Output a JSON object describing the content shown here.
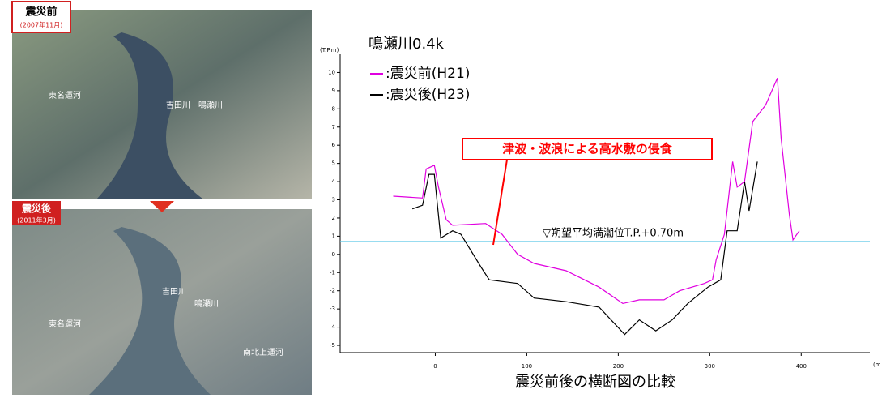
{
  "photos": [
    {
      "label": "震災前",
      "date": "(2007年11月)",
      "places": [
        "吉田川",
        "鳴瀬川",
        "東名運河"
      ]
    },
    {
      "label": "震災後",
      "date": "(2011年3月)",
      "places": [
        "鳴瀬川",
        "吉田川",
        "東名運河",
        "南北上運河"
      ]
    }
  ],
  "chart_data": {
    "type": "line",
    "title": "鳴瀬川0.4k",
    "caption": "震災前後の横断図の比較",
    "ylabel": "(T.P.m)",
    "xlabel": "(m",
    "annotation": "津波・波浪による高水敷の侵食",
    "hline": {
      "value": 0.7,
      "label": "▽朔望平均満潮位T.P.+0.70m",
      "color": "#5bc8e6"
    },
    "xlim": [
      -104,
      475
    ],
    "ylim": [
      -5.4,
      11
    ],
    "xticks": [
      0,
      100,
      200,
      300,
      400
    ],
    "yticks": [
      -5,
      -4,
      -3,
      -2,
      -1,
      0,
      1,
      2,
      3,
      4,
      5,
      6,
      7,
      8,
      9,
      10
    ],
    "series": [
      {
        "name": ":震災前(H21)",
        "color": "#e000e0",
        "x": [
          -46,
          -14,
          -10,
          -1,
          3.5,
          12,
          19,
          55,
          73,
          90,
          108,
          143,
          179,
          205,
          223,
          232,
          250,
          267,
          294,
          303,
          307,
          316,
          325,
          330,
          338,
          347,
          361,
          374,
          378,
          387,
          391,
          398
        ],
        "y": [
          3.2,
          3.1,
          4.7,
          4.9,
          3.7,
          1.9,
          1.6,
          1.7,
          1.1,
          0,
          -0.5,
          -0.9,
          -1.8,
          -2.7,
          -2.5,
          -2.5,
          -2.5,
          -2,
          -1.6,
          -1.4,
          -0.3,
          1.1,
          5.1,
          3.7,
          4,
          7.3,
          8.2,
          9.7,
          6.4,
          2.2,
          0.8,
          1.3
        ]
      },
      {
        "name": ":震災後(H23)",
        "color": "#000000",
        "x": [
          -25,
          -14,
          -7,
          -1,
          6,
          19,
          28,
          50,
          59,
          90,
          108,
          143,
          179,
          207,
          223,
          241,
          259,
          276,
          298,
          312,
          319,
          330,
          338,
          343,
          352
        ],
        "y": [
          2.5,
          2.7,
          4.4,
          4.4,
          0.9,
          1.3,
          1.1,
          -0.7,
          -1.4,
          -1.6,
          -2.4,
          -2.6,
          -2.9,
          -4.4,
          -3.6,
          -4.2,
          -3.6,
          -2.7,
          -1.8,
          -1.4,
          1.3,
          1.3,
          4,
          2.4,
          5.1
        ]
      }
    ]
  }
}
